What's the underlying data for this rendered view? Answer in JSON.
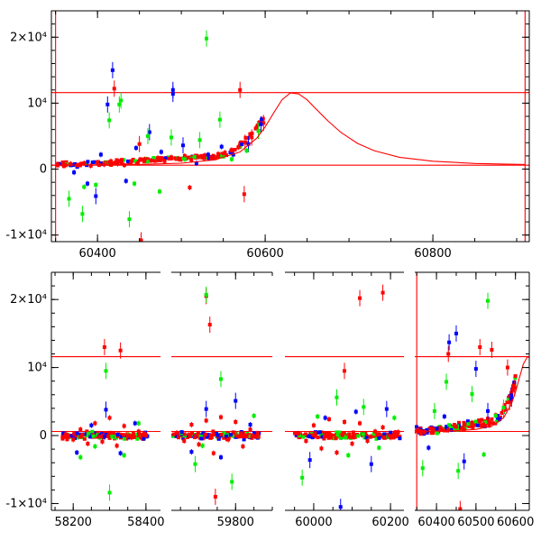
{
  "chart_data": [
    {
      "type": "scatter",
      "panel": "top",
      "xlim": [
        60345,
        60915
      ],
      "ylim": [
        -11000,
        24000
      ],
      "x_ticks": [
        60400,
        60600,
        60800
      ],
      "y_ticks": [
        {
          "value": -10000,
          "label": "-1×10⁴"
        },
        {
          "value": 0,
          "label": "0"
        },
        {
          "value": 10000,
          "label": "10⁴"
        },
        {
          "value": 20000,
          "label": "2×10⁴"
        }
      ],
      "grid": false,
      "colors": {
        "red": "#ff0000",
        "green": "#00ee00",
        "blue": "#0000ff",
        "model": "#ff0000"
      },
      "reference_lines": {
        "horizontal": [
          600,
          11600
        ],
        "vertical": [
          60350,
          60910
        ]
      },
      "model_curve": {
        "baseline": 600,
        "peak_x": 60632,
        "peak_y": 11600,
        "x": [
          60345,
          60400,
          60450,
          60500,
          60540,
          60570,
          60590,
          60600,
          60610,
          60620,
          60630,
          60640,
          60650,
          60660,
          60675,
          60690,
          60710,
          60730,
          60760,
          60800,
          60850,
          60910
        ],
        "y": [
          600,
          650,
          720,
          900,
          1400,
          2600,
          4700,
          6400,
          8500,
          10500,
          11550,
          11400,
          10500,
          9200,
          7300,
          5600,
          3900,
          2800,
          1800,
          1200,
          850,
          700
        ]
      },
      "series": [
        {
          "color": "red",
          "x": [
            60352,
            60360,
            60368,
            60376,
            60384,
            60392,
            60400,
            60408,
            60416,
            60424,
            60432,
            60440,
            60448,
            60456,
            60464,
            60472,
            60480,
            60488,
            60496,
            60504,
            60512,
            60520,
            60528,
            60536,
            60544,
            60552,
            60560,
            60568,
            60576,
            60584,
            60592,
            60598,
            60420,
            60450,
            60510,
            60570,
            60575,
            60452
          ],
          "y": [
            700,
            550,
            800,
            600,
            900,
            500,
            1000,
            700,
            1200,
            800,
            600,
            1100,
            900,
            1500,
            1300,
            1700,
            1200,
            1800,
            1600,
            2000,
            1400,
            1900,
            2100,
            1700,
            2300,
            2500,
            2900,
            3300,
            4000,
            4800,
            5800,
            7000,
            12200,
            3800,
            -2800,
            12000,
            -3800,
            -10800
          ]
        },
        {
          "color": "blue",
          "x": [
            60372,
            60388,
            60404,
            60418,
            60434,
            60446,
            60462,
            60476,
            60490,
            60502,
            60518,
            60532,
            60548,
            60562,
            60580,
            60595,
            60412,
            60490,
            60398
          ],
          "y": [
            -500,
            -2200,
            2200,
            15000,
            -1800,
            3200,
            5600,
            2600,
            12000,
            3600,
            900,
            2200,
            3400,
            2200,
            3800,
            6800,
            9800,
            11400,
            -4100
          ]
        },
        {
          "color": "green",
          "x": [
            60366,
            60382,
            60398,
            60414,
            60428,
            60444,
            60460,
            60474,
            60488,
            60504,
            60522,
            60530,
            60546,
            60560,
            60578,
            60592,
            60384,
            60426,
            60438
          ],
          "y": [
            -4500,
            -6800,
            -2400,
            7400,
            10400,
            -2200,
            5000,
            -3400,
            4800,
            1500,
            4400,
            19800,
            7500,
            1500,
            2800,
            5800,
            -2700,
            9800,
            -7600
          ]
        }
      ]
    },
    {
      "type": "scatter",
      "panel": "bottom",
      "ylim": [
        -11000,
        24000
      ],
      "y_ticks": [
        {
          "value": -10000,
          "label": "-1×10⁴"
        },
        {
          "value": 0,
          "label": "0"
        },
        {
          "value": 10000,
          "label": "10⁴"
        },
        {
          "value": 20000,
          "label": "2×10⁴"
        }
      ],
      "grid": false,
      "colors": {
        "red": "#ff0000",
        "green": "#00ee00",
        "blue": "#0000ff",
        "model": "#ff0000"
      },
      "reference_lines": {
        "horizontal": [
          600,
          11600
        ],
        "vertical": [
          60350
        ]
      },
      "segments": [
        {
          "xlim": [
            58140,
            58440
          ],
          "x_ticks": [
            58200,
            58400
          ],
          "series": [
            {
              "color": "red",
              "x": [
                58180,
                58200,
                58220,
                58240,
                58260,
                58280,
                58300,
                58320,
                58340,
                58360,
                58380,
                58400,
                58286,
                58330
              ],
              "y": [
                200,
                -600,
                900,
                -1200,
                1800,
                -900,
                2600,
                -1500,
                1400,
                -300,
                600,
                0,
                13000,
                12500
              ]
            },
            {
              "color": "blue",
              "x": [
                58210,
                58250,
                58290,
                58330,
                58370
              ],
              "y": [
                -2500,
                1500,
                3800,
                -2600,
                1800
              ]
            },
            {
              "color": "green",
              "x": [
                58220,
                58260,
                58290,
                58300,
                58340,
                58380
              ],
              "y": [
                -3200,
                -1600,
                9500,
                -8400,
                -2900,
                1800
              ]
            }
          ]
        },
        {
          "xlim": [
            59625,
            59900
          ],
          "x_ticks": [
            59800
          ],
          "series": [
            {
              "color": "red",
              "x": [
                59640,
                59660,
                59680,
                59700,
                59720,
                59740,
                59760,
                59780,
                59800,
                59820,
                59840,
                59860,
                59720,
                59730,
                59745
              ],
              "y": [
                400,
                -800,
                1600,
                -1300,
                2200,
                -2600,
                2700,
                -600,
                2000,
                -1600,
                900,
                300,
                20500,
                16300,
                -9000
              ]
            },
            {
              "color": "blue",
              "x": [
                59680,
                59720,
                59760,
                59800,
                59840
              ],
              "y": [
                -2400,
                3900,
                -3200,
                5100,
                1600
              ]
            },
            {
              "color": "green",
              "x": [
                59690,
                59720,
                59760,
                59790,
                59850,
                59710
              ],
              "y": [
                -4200,
                20700,
                8300,
                -6800,
                2900,
                -1500
              ]
            }
          ]
        },
        {
          "xlim": [
            59925,
            60235
          ],
          "x_ticks": [
            60000,
            60200
          ],
          "series": [
            {
              "color": "red",
              "x": [
                59960,
                59980,
                60000,
                60020,
                60040,
                60060,
                60080,
                60100,
                60120,
                60140,
                60160,
                60180,
                60200,
                60220,
                60120,
                60180,
                60080
              ],
              "y": [
                300,
                -800,
                1500,
                -1900,
                2400,
                -2500,
                2000,
                -1200,
                1800,
                -800,
                600,
                1200,
                -300,
                500,
                20200,
                21000,
                9500
              ]
            },
            {
              "color": "blue",
              "x": [
                59990,
                60030,
                60070,
                60110,
                60150,
                60190
              ],
              "y": [
                -3600,
                2600,
                -10500,
                3500,
                -4200,
                3900
              ]
            },
            {
              "color": "green",
              "x": [
                59970,
                60010,
                60060,
                60090,
                60130,
                60170,
                60210
              ],
              "y": [
                -6200,
                2800,
                5600,
                -2900,
                4200,
                -1800,
                2600
              ]
            }
          ]
        },
        {
          "xlim": [
            60345,
            60635
          ],
          "x_ticks": [
            60400,
            60500,
            60600
          ],
          "series": [
            {
              "color": "red",
              "x": [
                60352,
                60370,
                60390,
                60410,
                60430,
                60450,
                60470,
                60490,
                60510,
                60530,
                60550,
                60570,
                60585,
                60598,
                60430,
                60510,
                60540,
                60580,
                60460
              ],
              "y": [
                700,
                500,
                900,
                1100,
                800,
                1300,
                1600,
                1900,
                2100,
                2500,
                3000,
                3700,
                4900,
                7000,
                12000,
                13000,
                12600,
                10000,
                -10800
              ]
            },
            {
              "color": "blue",
              "x": [
                60380,
                60420,
                60450,
                60470,
                60500,
                60530,
                60560,
                60590,
                60432
              ],
              "y": [
                -1800,
                2800,
                15000,
                -3800,
                9800,
                3600,
                2400,
                5400,
                13700
              ]
            },
            {
              "color": "green",
              "x": [
                60365,
                60395,
                60425,
                60455,
                60490,
                60520,
                60550,
                60570,
                60530
              ],
              "y": [
                -4800,
                3600,
                7900,
                -5200,
                6100,
                -2800,
                2900,
                4100,
                19800
              ]
            }
          ]
        }
      ]
    }
  ]
}
